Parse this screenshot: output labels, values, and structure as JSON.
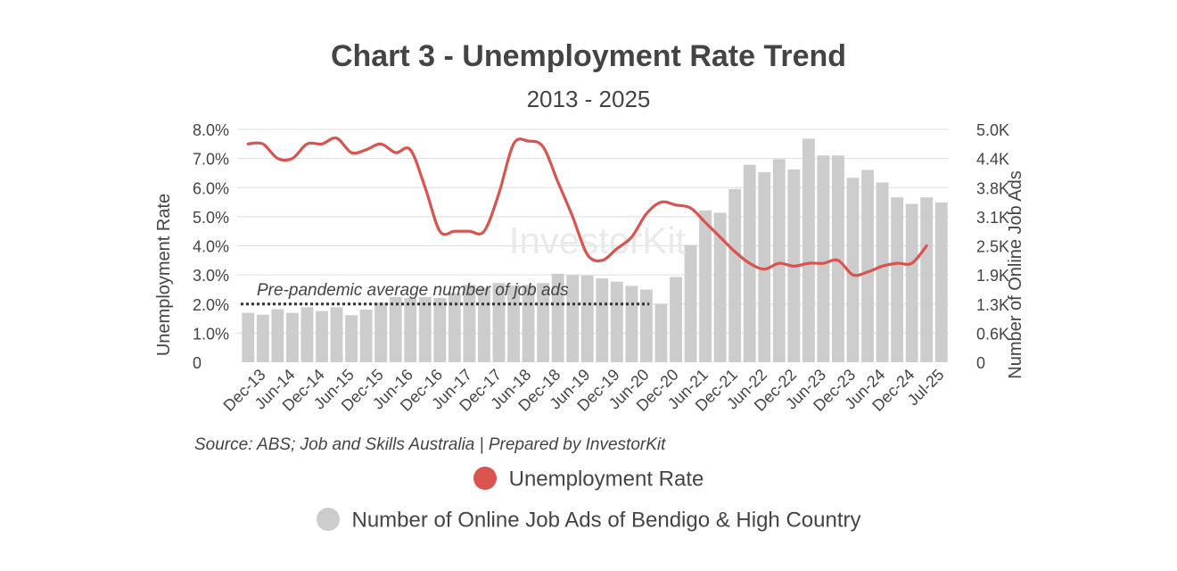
{
  "chart_data": {
    "type": "bar",
    "title": "Chart 3 - Unemployment Rate Trend",
    "subtitle": "2013 - 2025",
    "y_left_label": "Unemployment Rate",
    "y_right_label": "Number of Online Job Ads",
    "y_left_ticks": [
      "0",
      "1.0%",
      "2.0%",
      "3.0%",
      "4.0%",
      "5.0%",
      "6.0%",
      "7.0%",
      "8.0%"
    ],
    "y_right_ticks": [
      "0",
      "0.6K",
      "1.3K",
      "1.9K",
      "2.5K",
      "3.1K",
      "3.8K",
      "4.4K",
      "5.0K"
    ],
    "y_left_range": [
      0,
      8
    ],
    "y_right_range": [
      0,
      5000
    ],
    "x_labels": [
      "Dec-13",
      "Jun-14",
      "Dec-14",
      "Jun-15",
      "Dec-15",
      "Jun-16",
      "Dec-16",
      "Jun-17",
      "Dec-17",
      "Jun-18",
      "Dec-18",
      "Jun-19",
      "Dec-19",
      "Jun-20",
      "Dec-20",
      "Jun-21",
      "Dec-21",
      "Jun-22",
      "Dec-22",
      "Jun-23",
      "Dec-23",
      "Jun-24",
      "Dec-24",
      "Jul-25"
    ],
    "series": [
      {
        "name": "Number of Online Job Ads of Bendigo & High Country",
        "kind": "bar",
        "axis": "right",
        "color": "#cccccc",
        "values": [
          1060,
          1020,
          1140,
          1060,
          1180,
          1100,
          1180,
          1010,
          1130,
          1280,
          1400,
          1380,
          1400,
          1380,
          1490,
          1660,
          1600,
          1700,
          1650,
          1660,
          1700,
          1900,
          1870,
          1860,
          1800,
          1730,
          1640,
          1560,
          1250,
          1830,
          2520,
          3260,
          3210,
          3720,
          4240,
          4080,
          4360,
          4140,
          4800,
          4440,
          4440,
          3960,
          4130,
          3860,
          3540,
          3400,
          3540,
          3430
        ]
      },
      {
        "name": "Unemployment Rate",
        "kind": "line",
        "axis": "left",
        "color": "#d9534f",
        "x_positions": [
          0,
          1,
          2,
          3,
          4,
          5,
          6,
          7,
          8,
          9,
          10,
          11,
          12,
          13,
          14,
          15,
          16,
          17,
          18,
          19,
          20,
          21,
          22,
          23,
          24,
          25,
          26,
          27,
          28,
          29,
          30,
          31,
          32,
          33,
          34,
          35,
          36,
          37,
          38,
          39,
          40,
          41,
          42,
          43,
          44,
          45,
          46
        ],
        "values": [
          7.5,
          7.5,
          7.0,
          7.0,
          7.5,
          7.5,
          7.7,
          7.2,
          7.3,
          7.5,
          7.2,
          7.3,
          6.0,
          4.5,
          4.5,
          4.5,
          4.5,
          5.8,
          7.5,
          7.6,
          7.4,
          6.2,
          5.0,
          3.7,
          3.5,
          3.9,
          4.3,
          5.1,
          5.5,
          5.4,
          5.3,
          4.8,
          4.3,
          3.8,
          3.4,
          3.2,
          3.4,
          3.3,
          3.4,
          3.4,
          3.5,
          3.0,
          3.1,
          3.3,
          3.4,
          3.4,
          4.0
        ]
      }
    ],
    "reference_line": {
      "label": "Pre-pandemic average number of job ads",
      "axis": "left",
      "value": 2.0,
      "x_from": 0,
      "x_to": 27
    },
    "source": "Source: ABS; Job and Skills Australia | Prepared by InvestorKit",
    "watermark": "InvestorKit",
    "legend": [
      {
        "label": "Unemployment Rate",
        "color": "#d9534f"
      },
      {
        "label": "Number of Online Job Ads of Bendigo & High Country",
        "color": "#cccccc"
      }
    ],
    "grid": true
  }
}
